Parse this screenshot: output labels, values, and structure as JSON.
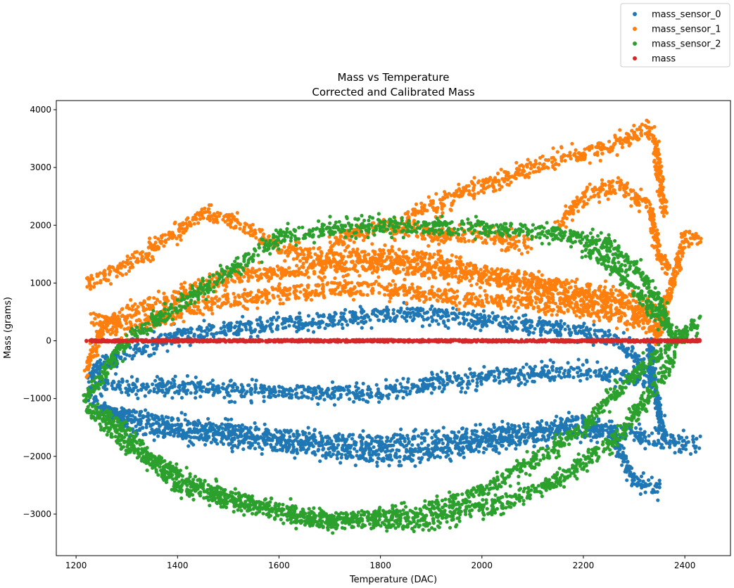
{
  "chart_data": {
    "type": "scatter",
    "title": "Mass vs Temperature",
    "subtitle": "Corrected and Calibrated Mass",
    "xlabel": "Temperature (DAC)",
    "ylabel": "Mass (grams)",
    "xlim": [
      1161,
      2490
    ],
    "ylim": [
      -3719,
      4158
    ],
    "xticks": [
      1200,
      1400,
      1600,
      1800,
      2000,
      2200,
      2400
    ],
    "yticks": [
      -3000,
      -2000,
      -1000,
      0,
      1000,
      2000,
      3000,
      4000
    ],
    "grid": false,
    "legend_position": "top-right (outside plot)",
    "note_on_series": "dense point clouds; traces give approximate centerlines [temperature, mass]",
    "series": [
      {
        "name": "mass_sensor_0",
        "color": "#1f77b4",
        "traces": [
          [
            [
              1220,
              -600
            ],
            [
              1300,
              -200
            ],
            [
              1400,
              100
            ],
            [
              1500,
              200
            ],
            [
              1600,
              300
            ],
            [
              1700,
              350
            ],
            [
              1800,
              450
            ],
            [
              1900,
              450
            ],
            [
              2000,
              350
            ],
            [
              2100,
              250
            ],
            [
              2200,
              150
            ],
            [
              2270,
              0
            ],
            [
              2300,
              -300
            ],
            [
              2340,
              -600
            ]
          ],
          [
            [
              1230,
              -700
            ],
            [
              1300,
              -800
            ],
            [
              1400,
              -800
            ],
            [
              1500,
              -850
            ],
            [
              1600,
              -880
            ],
            [
              1700,
              -900
            ],
            [
              1800,
              -900
            ],
            [
              1900,
              -750
            ],
            [
              2000,
              -650
            ],
            [
              2100,
              -550
            ],
            [
              2200,
              -520
            ],
            [
              2300,
              -650
            ],
            [
              2340,
              -700
            ]
          ],
          [
            [
              1225,
              -1000
            ],
            [
              1300,
              -1450
            ],
            [
              1400,
              -1600
            ],
            [
              1500,
              -1700
            ],
            [
              1600,
              -1800
            ],
            [
              1700,
              -1900
            ],
            [
              1800,
              -2000
            ],
            [
              1900,
              -1950
            ],
            [
              2000,
              -1800
            ],
            [
              2100,
              -1650
            ],
            [
              2200,
              -1550
            ],
            [
              2300,
              -1600
            ],
            [
              2350,
              -1750
            ],
            [
              2430,
              -1750
            ]
          ],
          [
            [
              1250,
              -1200
            ],
            [
              1400,
              -1450
            ],
            [
              1600,
              -1650
            ],
            [
              1800,
              -1750
            ],
            [
              2000,
              -1650
            ],
            [
              2200,
              -1400
            ],
            [
              2250,
              -1500
            ],
            [
              2300,
              -2400
            ],
            [
              2350,
              -2600
            ]
          ],
          [
            [
              2330,
              0
            ],
            [
              2340,
              -800
            ],
            [
              2350,
              -1300
            ],
            [
              2360,
              -1700
            ]
          ]
        ]
      },
      {
        "name": "mass_sensor_1",
        "color": "#ff7f0e",
        "traces": [
          [
            [
              1220,
              -500
            ],
            [
              1250,
              200
            ],
            [
              1300,
              500
            ],
            [
              1400,
              800
            ],
            [
              1500,
              1100
            ],
            [
              1600,
              1200
            ],
            [
              1700,
              1300
            ],
            [
              1800,
              1300
            ],
            [
              1900,
              1200
            ],
            [
              2000,
              1100
            ],
            [
              2100,
              900
            ],
            [
              2200,
              750
            ],
            [
              2300,
              550
            ],
            [
              2350,
              400
            ]
          ],
          [
            [
              1225,
              1000
            ],
            [
              1300,
              1300
            ],
            [
              1400,
              1900
            ],
            [
              1450,
              2200
            ],
            [
              1500,
              2100
            ],
            [
              1550,
              1900
            ],
            [
              1600,
              1600
            ],
            [
              1700,
              1400
            ],
            [
              1800,
              1500
            ],
            [
              1900,
              1400
            ],
            [
              2000,
              1200
            ],
            [
              2100,
              1050
            ],
            [
              2200,
              900
            ],
            [
              2300,
              700
            ],
            [
              2340,
              500
            ]
          ],
          [
            [
              1230,
              400
            ],
            [
              1300,
              200
            ],
            [
              1400,
              500
            ],
            [
              1500,
              700
            ],
            [
              1600,
              800
            ],
            [
              1700,
              900
            ],
            [
              1800,
              900
            ],
            [
              1900,
              800
            ],
            [
              2000,
              700
            ],
            [
              2100,
              650
            ],
            [
              2200,
              550
            ],
            [
              2300,
              350
            ],
            [
              2350,
              200
            ]
          ],
          [
            [
              1850,
              2100
            ],
            [
              1950,
              2500
            ],
            [
              2050,
              2850
            ],
            [
              2150,
              3150
            ],
            [
              2250,
              3350
            ],
            [
              2320,
              3650
            ],
            [
              2340,
              3500
            ],
            [
              2350,
              2800
            ],
            [
              2360,
              2200
            ]
          ],
          [
            [
              2150,
              2000
            ],
            [
              2200,
              2450
            ],
            [
              2250,
              2650
            ],
            [
              2270,
              2700
            ],
            [
              2300,
              2500
            ],
            [
              2330,
              2300
            ],
            [
              2350,
              1500
            ],
            [
              2370,
              1200
            ]
          ],
          [
            [
              2340,
              0
            ],
            [
              2370,
              800
            ],
            [
              2400,
              1800
            ],
            [
              2430,
              1750
            ]
          ],
          [
            [
              1700,
              1700
            ],
            [
              1800,
              2000
            ],
            [
              1900,
              1850
            ],
            [
              2000,
              1800
            ],
            [
              2100,
              1700
            ]
          ]
        ]
      },
      {
        "name": "mass_sensor_2",
        "color": "#2ca02c",
        "traces": [
          [
            [
              1220,
              -1000
            ],
            [
              1260,
              -500
            ],
            [
              1300,
              0
            ],
            [
              1400,
              600
            ],
            [
              1500,
              1200
            ],
            [
              1550,
              1500
            ],
            [
              1600,
              1800
            ],
            [
              1700,
              1950
            ],
            [
              1800,
              2000
            ],
            [
              1900,
              1950
            ],
            [
              2000,
              1950
            ],
            [
              2100,
              1900
            ],
            [
              2200,
              1800
            ],
            [
              2250,
              1650
            ],
            [
              2300,
              1300
            ],
            [
              2350,
              700
            ],
            [
              2370,
              200
            ],
            [
              2380,
              0
            ],
            [
              2400,
              150
            ],
            [
              2430,
              350
            ]
          ],
          [
            [
              2200,
              1600
            ],
            [
              2260,
              1300
            ],
            [
              2300,
              900
            ],
            [
              2340,
              500
            ],
            [
              2360,
              300
            ]
          ],
          [
            [
              1220,
              -1100
            ],
            [
              1250,
              -1400
            ],
            [
              1300,
              -1800
            ],
            [
              1400,
              -2300
            ],
            [
              1500,
              -2700
            ],
            [
              1600,
              -2900
            ],
            [
              1700,
              -3100
            ],
            [
              1800,
              -3050
            ],
            [
              1900,
              -2900
            ],
            [
              2000,
              -2600
            ],
            [
              2100,
              -2100
            ],
            [
              2200,
              -1500
            ],
            [
              2250,
              -1000
            ],
            [
              2300,
              -600
            ],
            [
              2350,
              -200
            ],
            [
              2400,
              100
            ]
          ],
          [
            [
              1250,
              -1200
            ],
            [
              1400,
              -2500
            ],
            [
              1600,
              -3000
            ],
            [
              1700,
              -3150
            ],
            [
              1800,
              -3100
            ],
            [
              1870,
              -3200
            ],
            [
              1950,
              -3000
            ],
            [
              2050,
              -2800
            ],
            [
              2150,
              -2400
            ],
            [
              2250,
              -1800
            ],
            [
              2300,
              -1300
            ],
            [
              2350,
              -700
            ],
            [
              2380,
              -300
            ]
          ]
        ]
      },
      {
        "name": "mass",
        "color": "#d62728",
        "traces": [
          [
            [
              1220,
              0
            ],
            [
              2430,
              0
            ]
          ]
        ]
      }
    ]
  }
}
